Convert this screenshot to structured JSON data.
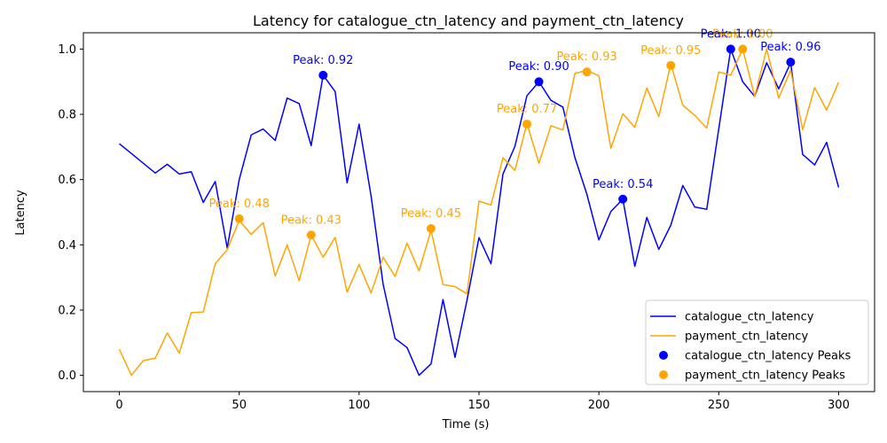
{
  "chart_data": {
    "type": "line",
    "title": "Latency for catalogue_ctn_latency and payment_ctn_latency",
    "xlabel": "Time (s)",
    "ylabel": "Latency",
    "xlim": [
      -15,
      315
    ],
    "ylim": [
      -0.05,
      1.05
    ],
    "x_ticks": [
      0,
      50,
      100,
      150,
      200,
      250,
      300
    ],
    "y_ticks": [
      0.0,
      0.2,
      0.4,
      0.6,
      0.8,
      1.0
    ],
    "x_tick_labels": [
      "0",
      "50",
      "100",
      "150",
      "200",
      "250",
      "300"
    ],
    "y_tick_labels": [
      "0.0",
      "0.2",
      "0.4",
      "0.6",
      "0.8",
      "1.0"
    ],
    "grid": false,
    "legend_position": "bottom-right",
    "x": [
      0,
      5,
      10,
      15,
      20,
      25,
      30,
      35,
      40,
      45,
      50,
      55,
      60,
      65,
      70,
      75,
      80,
      85,
      90,
      95,
      100,
      105,
      110,
      115,
      120,
      125,
      130,
      135,
      140,
      145,
      150,
      155,
      160,
      165,
      170,
      175,
      180,
      185,
      190,
      195,
      200,
      205,
      210,
      215,
      220,
      225,
      230,
      235,
      240,
      245,
      250,
      255,
      260,
      265,
      270,
      275,
      280,
      285,
      290,
      295,
      300
    ],
    "series": [
      {
        "name": "catalogue_ctn_latency",
        "color": "#0000ff",
        "values": [
          0.71,
          0.68,
          0.65,
          0.62,
          0.647,
          0.617,
          0.624,
          0.53,
          0.594,
          0.39,
          0.6,
          0.737,
          0.755,
          0.72,
          0.85,
          0.833,
          0.704,
          0.92,
          0.87,
          0.59,
          0.77,
          0.55,
          0.28,
          0.113,
          0.085,
          0.0,
          0.035,
          0.232,
          0.055,
          0.23,
          0.422,
          0.342,
          0.617,
          0.702,
          0.857,
          0.9,
          0.843,
          0.822,
          0.668,
          0.555,
          0.415,
          0.502,
          0.54,
          0.334,
          0.484,
          0.386,
          0.46,
          0.582,
          0.516,
          0.509,
          0.755,
          1.0,
          0.9,
          0.855,
          0.958,
          0.878,
          0.958,
          0.677,
          0.645,
          0.714,
          0.576
        ]
      },
      {
        "name": "payment_ctn_latency",
        "color": "#ffa500",
        "values": [
          0.08,
          0.0,
          0.045,
          0.053,
          0.13,
          0.068,
          0.192,
          0.194,
          0.342,
          0.385,
          0.475,
          0.432,
          0.468,
          0.304,
          0.4,
          0.29,
          0.43,
          0.362,
          0.423,
          0.255,
          0.34,
          0.252,
          0.362,
          0.303,
          0.405,
          0.32,
          0.445,
          0.278,
          0.272,
          0.25,
          0.534,
          0.522,
          0.667,
          0.628,
          0.772,
          0.65,
          0.765,
          0.752,
          0.925,
          0.935,
          0.918,
          0.696,
          0.802,
          0.76,
          0.881,
          0.793,
          0.955,
          0.828,
          0.797,
          0.758,
          0.93,
          0.92,
          1.0,
          0.855,
          1.0,
          0.85,
          0.935,
          0.753,
          0.882,
          0.813,
          0.898
        ]
      }
    ],
    "peaks": [
      {
        "series": "catalogue_ctn_latency",
        "legend": "catalogue_ctn_latency Peaks",
        "color": "#0000ff",
        "points": [
          {
            "x": 85,
            "y": 0.92,
            "label": "Peak: 0.92"
          },
          {
            "x": 175,
            "y": 0.9,
            "label": "Peak: 0.90"
          },
          {
            "x": 210,
            "y": 0.54,
            "label": "Peak: 0.54"
          },
          {
            "x": 255,
            "y": 1.0,
            "label": "Peak: 1.00"
          },
          {
            "x": 280,
            "y": 0.96,
            "label": "Peak: 0.96"
          }
        ]
      },
      {
        "series": "payment_ctn_latency",
        "legend": "payment_ctn_latency Peaks",
        "color": "#ffa500",
        "points": [
          {
            "x": 50,
            "y": 0.48,
            "label": "Peak: 0.48"
          },
          {
            "x": 80,
            "y": 0.43,
            "label": "Peak: 0.43"
          },
          {
            "x": 130,
            "y": 0.45,
            "label": "Peak: 0.45"
          },
          {
            "x": 170,
            "y": 0.77,
            "label": "Peak: 0.77"
          },
          {
            "x": 195,
            "y": 0.93,
            "label": "Peak: 0.93"
          },
          {
            "x": 230,
            "y": 0.95,
            "label": "Peak: 0.95"
          },
          {
            "x": 260,
            "y": 1.0,
            "label": "Peak: 1.00"
          }
        ]
      }
    ]
  }
}
